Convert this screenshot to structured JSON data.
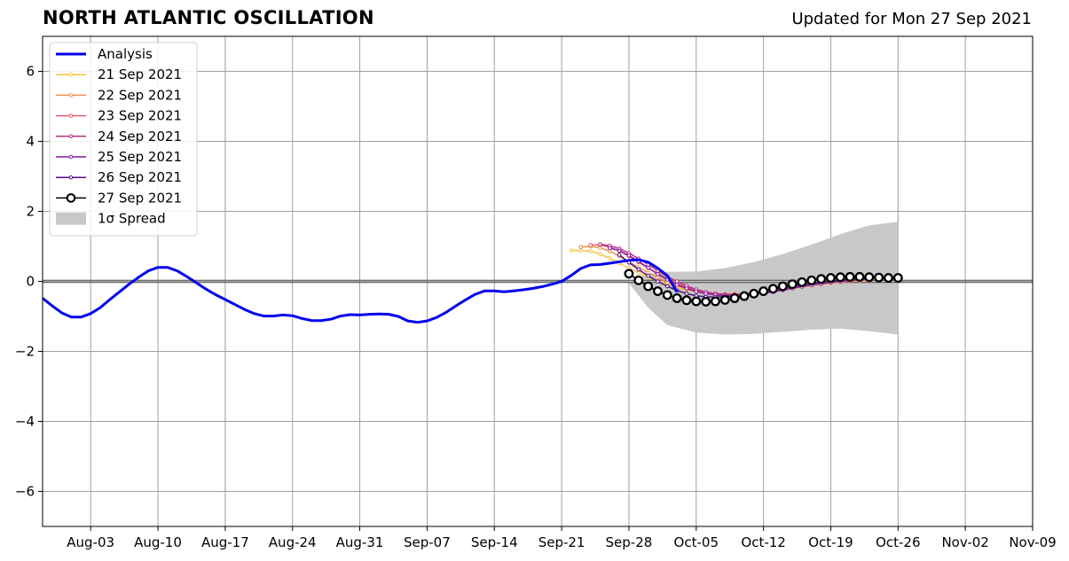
{
  "header": {
    "title": "NORTH ATLANTIC OSCILLATION",
    "subtitle": "Updated for Mon 27 Sep 2021"
  },
  "chart_data": {
    "type": "line",
    "title": "NORTH ATLANTIC OSCILLATION",
    "subtitle": "Updated for Mon 27 Sep 2021",
    "xlabel": "",
    "ylabel": "",
    "x_axis": {
      "type": "date",
      "year": 2021,
      "range": [
        "2021-07-29",
        "2021-11-09"
      ],
      "tick_dates": [
        "2021-08-03",
        "2021-08-10",
        "2021-08-17",
        "2021-08-24",
        "2021-08-31",
        "2021-09-07",
        "2021-09-14",
        "2021-09-21",
        "2021-09-28",
        "2021-10-05",
        "2021-10-12",
        "2021-10-19",
        "2021-10-26",
        "2021-11-02",
        "2021-11-09"
      ],
      "tick_labels": [
        "Aug-03",
        "Aug-10",
        "Aug-17",
        "Aug-24",
        "Aug-31",
        "Sep-07",
        "Sep-14",
        "Sep-21",
        "Sep-28",
        "Oct-05",
        "Oct-12",
        "Oct-19",
        "Oct-26",
        "Nov-02",
        "Nov-09"
      ]
    },
    "ylim": [
      -7,
      7
    ],
    "yticks": [
      6,
      4,
      2,
      0,
      -2,
      -4,
      -6
    ],
    "ytick_labels": [
      "6",
      "4",
      "2",
      "0",
      "−2",
      "−4",
      "−6"
    ],
    "grid": true,
    "zero_line": true,
    "legend": {
      "placement": "top-left"
    },
    "colors": {
      "analysis": "#0000ee",
      "spread": "#c8c8c8",
      "forecast_27": "#000000",
      "grid": "#a0a0a0"
    },
    "series": [
      {
        "name": "Analysis",
        "kind": "analysis",
        "color": "#0000ee",
        "start_date": "2021-07-29",
        "values": [
          -0.48,
          -0.7,
          -0.9,
          -1.02,
          -1.02,
          -0.92,
          -0.75,
          -0.52,
          -0.3,
          -0.08,
          0.12,
          0.3,
          0.4,
          0.4,
          0.3,
          0.14,
          -0.04,
          -0.22,
          -0.38,
          -0.52,
          -0.66,
          -0.8,
          -0.92,
          -0.99,
          -0.99,
          -0.96,
          -0.98,
          -1.06,
          -1.12,
          -1.12,
          -1.08,
          -0.99,
          -0.95,
          -0.96,
          -0.94,
          -0.93,
          -0.94,
          -1.0,
          -1.13,
          -1.17,
          -1.13,
          -1.03,
          -0.88,
          -0.7,
          -0.53,
          -0.37,
          -0.27,
          -0.27,
          -0.3,
          -0.27,
          -0.24,
          -0.2,
          -0.15,
          -0.08,
          0.0,
          0.17,
          0.37,
          0.47,
          0.48,
          0.52,
          0.56,
          0.6,
          0.62,
          0.55,
          0.38,
          0.16,
          -0.3
        ]
      },
      {
        "name": "21 Sep 2021",
        "kind": "forecast",
        "color": "#f5c242",
        "start_date": "2021-09-22",
        "values": [
          0.88,
          0.88,
          0.86,
          0.78,
          0.66,
          0.52,
          0.38,
          0.24,
          0.12,
          0.02,
          -0.08,
          -0.17,
          -0.24,
          -0.3,
          -0.34,
          -0.37,
          -0.38,
          -0.38,
          -0.37,
          -0.35,
          -0.32,
          -0.28,
          -0.24,
          -0.2,
          -0.16,
          -0.12,
          -0.08,
          -0.05,
          -0.02,
          0.0,
          0.02,
          0.03
        ]
      },
      {
        "name": "22 Sep 2021",
        "kind": "forecast",
        "color": "#f08f4a",
        "start_date": "2021-09-23",
        "values": [
          0.98,
          1.0,
          0.96,
          0.86,
          0.72,
          0.56,
          0.4,
          0.25,
          0.11,
          -0.02,
          -0.13,
          -0.22,
          -0.29,
          -0.33,
          -0.35,
          -0.36,
          -0.36,
          -0.35,
          -0.33,
          -0.3,
          -0.26,
          -0.22,
          -0.18,
          -0.14,
          -0.1,
          -0.07,
          -0.04,
          -0.02,
          0.0,
          0.02,
          0.03
        ]
      },
      {
        "name": "23 Sep 2021",
        "kind": "forecast",
        "color": "#dd5a6e",
        "start_date": "2021-09-24",
        "values": [
          1.04,
          1.04,
          0.98,
          0.87,
          0.72,
          0.55,
          0.38,
          0.22,
          0.07,
          -0.06,
          -0.17,
          -0.25,
          -0.31,
          -0.35,
          -0.37,
          -0.37,
          -0.36,
          -0.34,
          -0.31,
          -0.27,
          -0.23,
          -0.19,
          -0.14,
          -0.1,
          -0.06,
          -0.03,
          0.0,
          0.02,
          0.04,
          0.05
        ]
      },
      {
        "name": "24 Sep 2021",
        "kind": "forecast",
        "color": "#b83282",
        "start_date": "2021-09-25",
        "values": [
          1.06,
          1.02,
          0.94,
          0.81,
          0.65,
          0.48,
          0.3,
          0.14,
          0.0,
          -0.13,
          -0.23,
          -0.3,
          -0.35,
          -0.37,
          -0.38,
          -0.37,
          -0.35,
          -0.32,
          -0.28,
          -0.24,
          -0.19,
          -0.15,
          -0.1,
          -0.06,
          -0.03,
          0.0,
          0.03,
          0.05,
          0.06
        ]
      },
      {
        "name": "25 Sep 2021",
        "kind": "forecast",
        "color": "#8a1aa0",
        "start_date": "2021-09-26",
        "values": [
          0.95,
          0.88,
          0.74,
          0.57,
          0.39,
          0.21,
          0.05,
          -0.09,
          -0.2,
          -0.29,
          -0.35,
          -0.39,
          -0.41,
          -0.41,
          -0.4,
          -0.37,
          -0.34,
          -0.3,
          -0.25,
          -0.2,
          -0.15,
          -0.11,
          -0.07,
          -0.03,
          0.0,
          0.03,
          0.05,
          0.07
        ]
      },
      {
        "name": "26 Sep 2021",
        "kind": "forecast",
        "color": "#4a0c82",
        "start_date": "2021-09-27",
        "values": [
          0.76,
          0.54,
          0.34,
          0.16,
          0.0,
          -0.14,
          -0.26,
          -0.35,
          -0.41,
          -0.44,
          -0.45,
          -0.44,
          -0.42,
          -0.38,
          -0.34,
          -0.29,
          -0.24,
          -0.19,
          -0.14,
          -0.1,
          -0.06,
          -0.02,
          0.01,
          0.04,
          0.06,
          0.08,
          0.09
        ]
      },
      {
        "name": "27 Sep 2021",
        "kind": "current",
        "color": "#000000",
        "start_date": "2021-09-28",
        "values": [
          0.22,
          0.03,
          -0.14,
          -0.28,
          -0.39,
          -0.48,
          -0.54,
          -0.57,
          -0.58,
          -0.57,
          -0.53,
          -0.48,
          -0.42,
          -0.35,
          -0.28,
          -0.21,
          -0.14,
          -0.08,
          -0.02,
          0.03,
          0.07,
          0.1,
          0.12,
          0.13,
          0.13,
          0.12,
          0.11,
          0.1,
          0.1
        ]
      }
    ],
    "spread": {
      "name": "1σ Spread",
      "start_date": "2021-09-28",
      "end_date": "2021-10-26",
      "upper_points": [
        [
          "2021-09-28",
          0.0
        ],
        [
          "2021-09-30",
          0.22
        ],
        [
          "2021-10-02",
          0.27
        ],
        [
          "2021-10-05",
          0.28
        ],
        [
          "2021-10-08",
          0.38
        ],
        [
          "2021-10-11",
          0.55
        ],
        [
          "2021-10-14",
          0.78
        ],
        [
          "2021-10-17",
          1.05
        ],
        [
          "2021-10-20",
          1.35
        ],
        [
          "2021-10-23",
          1.6
        ],
        [
          "2021-10-26",
          1.7
        ]
      ],
      "lower_points": [
        [
          "2021-09-28",
          -0.05
        ],
        [
          "2021-09-30",
          -0.75
        ],
        [
          "2021-10-02",
          -1.25
        ],
        [
          "2021-10-05",
          -1.46
        ],
        [
          "2021-10-08",
          -1.52
        ],
        [
          "2021-10-11",
          -1.5
        ],
        [
          "2021-10-14",
          -1.44
        ],
        [
          "2021-10-17",
          -1.38
        ],
        [
          "2021-10-20",
          -1.35
        ],
        [
          "2021-10-23",
          -1.42
        ],
        [
          "2021-10-26",
          -1.52
        ]
      ]
    }
  }
}
